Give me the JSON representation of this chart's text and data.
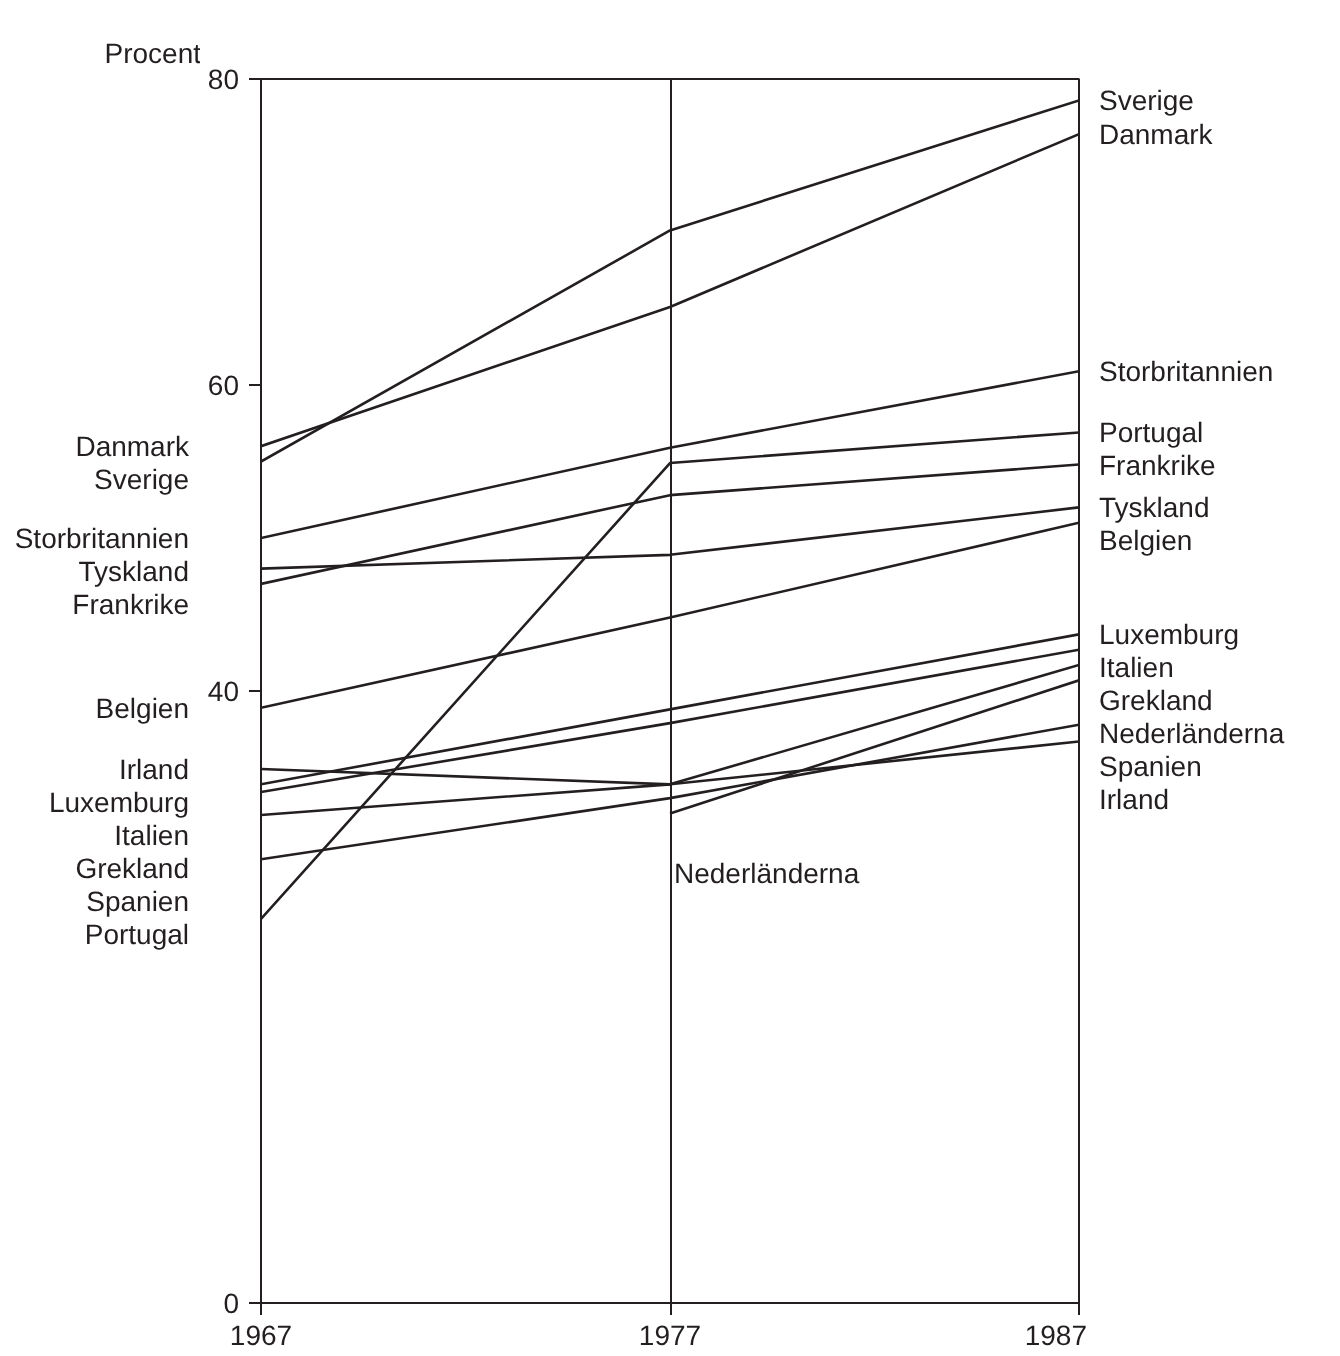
{
  "chart_data": {
    "type": "line",
    "ylabel": "Procent",
    "x": [
      1967,
      1977,
      1987
    ],
    "xlim": [
      1967,
      1987
    ],
    "xticks": [
      1967,
      1977,
      1987
    ],
    "ylim": [
      0,
      80
    ],
    "yticks": [
      0,
      40,
      60,
      80
    ],
    "grid": "x",
    "marker": "none",
    "line_style": "solid",
    "series": [
      {
        "name": "Sverige",
        "color": "#231f20",
        "values": [
          55.0,
          70.1,
          78.6
        ]
      },
      {
        "name": "Danmark",
        "color": "#231f20",
        "values": [
          56.0,
          65.1,
          76.4
        ]
      },
      {
        "name": "Storbritannien",
        "color": "#231f20",
        "values": [
          50.0,
          55.9,
          60.9
        ]
      },
      {
        "name": "Portugal",
        "color": "#231f20",
        "values": [
          25.1,
          54.9,
          56.9
        ]
      },
      {
        "name": "Frankrike",
        "color": "#231f20",
        "values": [
          47.0,
          52.8,
          54.8
        ]
      },
      {
        "name": "Tyskland",
        "color": "#231f20",
        "values": [
          48.0,
          48.9,
          52.0
        ]
      },
      {
        "name": "Belgien",
        "color": "#231f20",
        "values": [
          38.9,
          44.8,
          51.0
        ]
      },
      {
        "name": "Luxemburg",
        "color": "#231f20",
        "values": [
          33.9,
          38.8,
          43.7
        ]
      },
      {
        "name": "Italien",
        "color": "#231f20",
        "values": [
          33.4,
          37.9,
          42.7
        ]
      },
      {
        "name": "Grekland",
        "color": "#231f20",
        "values": [
          31.9,
          33.9,
          41.7
        ]
      },
      {
        "name": "Nederländerna",
        "color": "#231f20",
        "values": [
          null,
          32.0,
          40.7
        ]
      },
      {
        "name": "Spanien",
        "color": "#231f20",
        "values": [
          29.0,
          33.0,
          37.8
        ]
      },
      {
        "name": "Irland",
        "color": "#231f20",
        "values": [
          34.9,
          33.9,
          36.7
        ]
      }
    ]
  }
}
